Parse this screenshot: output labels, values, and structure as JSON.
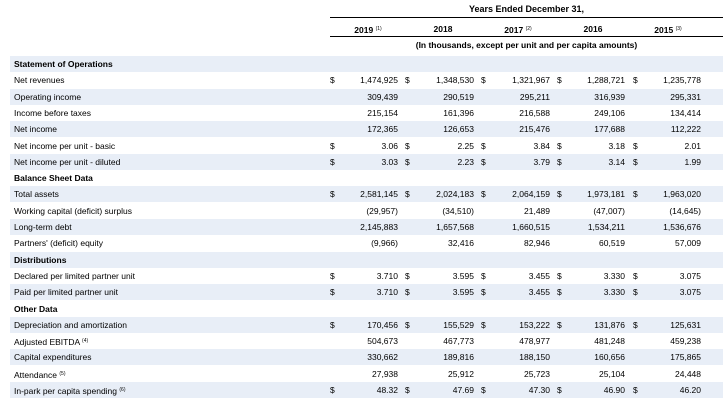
{
  "header": {
    "title": "Years Ended December 31,",
    "subtitle": "(In thousands, except per unit and per capita amounts)",
    "years": [
      {
        "year": "2019",
        "note": "(1)"
      },
      {
        "year": "2018",
        "note": ""
      },
      {
        "year": "2017",
        "note": "(2)"
      },
      {
        "year": "2016",
        "note": ""
      },
      {
        "year": "2015",
        "note": "(3)"
      }
    ]
  },
  "rows": [
    {
      "type": "section",
      "label": "Statement of Operations"
    },
    {
      "type": "data",
      "label": "Net revenues",
      "note": "",
      "dollar": true,
      "values": [
        "1,474,925",
        "1,348,530",
        "1,321,967",
        "1,288,721",
        "1,235,778"
      ]
    },
    {
      "type": "data",
      "label": "Operating income",
      "note": "",
      "dollar": false,
      "values": [
        "309,439",
        "290,519",
        "295,211",
        "316,939",
        "295,331"
      ]
    },
    {
      "type": "data",
      "label": "Income before taxes",
      "note": "",
      "dollar": false,
      "values": [
        "215,154",
        "161,396",
        "216,588",
        "249,106",
        "134,414"
      ]
    },
    {
      "type": "data",
      "label": "Net income",
      "note": "",
      "dollar": false,
      "values": [
        "172,365",
        "126,653",
        "215,476",
        "177,688",
        "112,222"
      ]
    },
    {
      "type": "data",
      "label": "Net income per unit - basic",
      "note": "",
      "dollar": true,
      "values": [
        "3.06",
        "2.25",
        "3.84",
        "3.18",
        "2.01"
      ]
    },
    {
      "type": "data",
      "label": "Net income per unit - diluted",
      "note": "",
      "dollar": true,
      "values": [
        "3.03",
        "2.23",
        "3.79",
        "3.14",
        "1.99"
      ]
    },
    {
      "type": "section",
      "label": "Balance Sheet Data"
    },
    {
      "type": "data",
      "label": "Total assets",
      "note": "",
      "dollar": true,
      "values": [
        "2,581,145",
        "2,024,183",
        "2,064,159",
        "1,973,181",
        "1,963,020"
      ]
    },
    {
      "type": "data",
      "label": "Working capital (deficit) surplus",
      "note": "",
      "dollar": false,
      "values": [
        "(29,957)",
        "(34,510)",
        "21,489",
        "(47,007)",
        "(14,645)"
      ]
    },
    {
      "type": "data",
      "label": "Long-term debt",
      "note": "",
      "dollar": false,
      "values": [
        "2,145,883",
        "1,657,568",
        "1,660,515",
        "1,534,211",
        "1,536,676"
      ]
    },
    {
      "type": "data",
      "label": "Partners' (deficit) equity",
      "note": "",
      "dollar": false,
      "values": [
        "(9,966)",
        "32,416",
        "82,946",
        "60,519",
        "57,009"
      ]
    },
    {
      "type": "section",
      "label": "Distributions"
    },
    {
      "type": "data",
      "label": "Declared per limited partner unit",
      "note": "",
      "dollar": true,
      "values": [
        "3.710",
        "3.595",
        "3.455",
        "3.330",
        "3.075"
      ]
    },
    {
      "type": "data",
      "label": "Paid per limited partner unit",
      "note": "",
      "dollar": true,
      "values": [
        "3.710",
        "3.595",
        "3.455",
        "3.330",
        "3.075"
      ]
    },
    {
      "type": "section",
      "label": "Other Data"
    },
    {
      "type": "data",
      "label": "Depreciation and amortization",
      "note": "",
      "dollar": true,
      "values": [
        "170,456",
        "155,529",
        "153,222",
        "131,876",
        "125,631"
      ]
    },
    {
      "type": "data",
      "label": "Adjusted EBITDA",
      "note": "(4)",
      "dollar": false,
      "values": [
        "504,673",
        "467,773",
        "478,977",
        "481,248",
        "459,238"
      ]
    },
    {
      "type": "data",
      "label": "Capital expenditures",
      "note": "",
      "dollar": false,
      "values": [
        "330,662",
        "189,816",
        "188,150",
        "160,656",
        "175,865"
      ]
    },
    {
      "type": "data",
      "label": "Attendance",
      "note": "(5)",
      "dollar": false,
      "values": [
        "27,938",
        "25,912",
        "25,723",
        "25,104",
        "24,448"
      ]
    },
    {
      "type": "data",
      "label": "In-park per capita spending",
      "note": "(6)",
      "dollar": true,
      "values": [
        "48.32",
        "47.69",
        "47.30",
        "46.90",
        "46.20"
      ]
    }
  ],
  "currency_symbol": "$"
}
